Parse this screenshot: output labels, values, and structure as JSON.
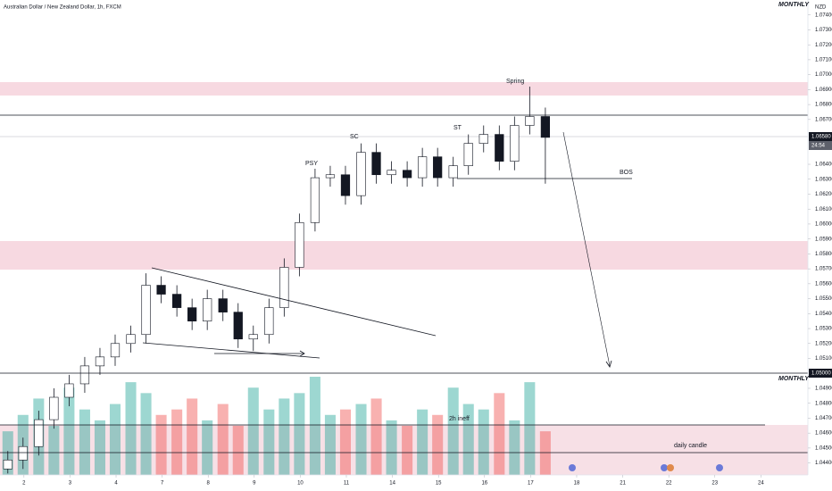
{
  "chart_data": {
    "type": "candlestick",
    "title": "Australian Dollar / New Zealand Dollar, 1h, FXCM",
    "currency": "NZD",
    "timeframe_labels": [
      "MONTHLY",
      "MONTHLY"
    ],
    "price_tags": [
      "1.06580",
      "24:54",
      "1.05000"
    ],
    "annotations": [
      "PSY",
      "SC",
      "ST",
      "Spring",
      "BOS",
      "2h ineff",
      "daily candle"
    ],
    "x": [
      0.65,
      0.98,
      1.32,
      1.65,
      1.98,
      2.32,
      2.65,
      2.98,
      3.32,
      3.65,
      3.98,
      4.32,
      4.65,
      4.98,
      5.32,
      5.65,
      5.98,
      6.32,
      6.65,
      6.98,
      7.32,
      7.65,
      7.98,
      8.32,
      8.65,
      8.98,
      9.32,
      9.65,
      9.98,
      10.32,
      10.65,
      10.98,
      11.32,
      11.65,
      11.98,
      12.32
    ],
    "open": [
      1.0436,
      1.0442,
      1.0451,
      1.0469,
      1.0484,
      1.0493,
      1.0505,
      1.0511,
      1.052,
      1.0526,
      1.0559,
      1.0553,
      1.0544,
      1.0535,
      1.055,
      1.0541,
      1.0523,
      1.0526,
      1.0544,
      1.0571,
      1.0601,
      1.0631,
      1.0633,
      1.0619,
      1.0648,
      1.0633,
      1.0636,
      1.0631,
      1.0645,
      1.0631,
      1.0639,
      1.0654,
      1.066,
      1.0642,
      1.0666,
      1.0672
    ],
    "high": [
      1.0448,
      1.0457,
      1.0475,
      1.049,
      1.0499,
      1.0511,
      1.0517,
      1.0526,
      1.0532,
      1.0567,
      1.0565,
      1.0559,
      1.055,
      1.0556,
      1.0556,
      1.0547,
      1.0532,
      1.055,
      1.0577,
      1.0607,
      1.0637,
      1.0639,
      1.0639,
      1.0654,
      1.0654,
      1.0642,
      1.0642,
      1.0651,
      1.0651,
      1.0645,
      1.066,
      1.0666,
      1.0666,
      1.0672,
      1.0692,
      1.0678
    ],
    "low": [
      1.0433,
      1.0436,
      1.0445,
      1.0463,
      1.0478,
      1.0487,
      1.0499,
      1.0505,
      1.0514,
      1.052,
      1.0547,
      1.0538,
      1.0529,
      1.0529,
      1.0535,
      1.0517,
      1.0515,
      1.052,
      1.0538,
      1.0565,
      1.0595,
      1.0625,
      1.0613,
      1.0613,
      1.0627,
      1.0627,
      1.0625,
      1.0625,
      1.0625,
      1.0625,
      1.0633,
      1.0648,
      1.0636,
      1.0636,
      1.066,
      1.0627
    ],
    "close": [
      1.0442,
      1.0451,
      1.0469,
      1.0484,
      1.0493,
      1.0505,
      1.0511,
      1.052,
      1.0526,
      1.0559,
      1.0553,
      1.0544,
      1.0535,
      1.055,
      1.0541,
      1.0523,
      1.0526,
      1.0544,
      1.0571,
      1.0601,
      1.0631,
      1.0633,
      1.0619,
      1.0648,
      1.0633,
      1.0636,
      1.0631,
      1.0645,
      1.0631,
      1.0639,
      1.0654,
      1.066,
      1.0642,
      1.0666,
      1.0672,
      1.0658
    ],
    "volume": [
      40,
      55,
      70,
      45,
      80,
      60,
      50,
      65,
      85,
      75,
      55,
      60,
      70,
      50,
      65,
      45,
      80,
      60,
      70,
      75,
      90,
      55,
      60,
      65,
      70,
      50,
      45,
      60,
      55,
      80,
      65,
      60,
      75,
      50,
      85,
      40
    ],
    "up_color": "#26a69a",
    "down_color": "#ef5350",
    "xlim": [
      0.48,
      18.02
    ],
    "xticks": [
      {
        "value": 1,
        "label": "2"
      },
      {
        "value": 2,
        "label": "3"
      },
      {
        "value": 3,
        "label": "4"
      },
      {
        "value": 4,
        "label": "7"
      },
      {
        "value": 5,
        "label": "8"
      },
      {
        "value": 6,
        "label": "9"
      },
      {
        "value": 7,
        "label": "10"
      },
      {
        "value": 8,
        "label": "11"
      },
      {
        "value": 9,
        "label": "14"
      },
      {
        "value": 10,
        "label": "15"
      },
      {
        "value": 11,
        "label": "16"
      },
      {
        "value": 12,
        "label": "17"
      },
      {
        "value": 13,
        "label": "18"
      },
      {
        "value": 14,
        "label": "21"
      },
      {
        "value": 15,
        "label": "22"
      },
      {
        "value": 16,
        "label": "23"
      },
      {
        "value": 17,
        "label": "24"
      }
    ],
    "ylim": [
      1.0432,
      1.075
    ],
    "yticks": [
      {
        "value": 1.044,
        "label": "1.04400"
      },
      {
        "value": 1.045,
        "label": "1.04500"
      },
      {
        "value": 1.046,
        "label": "1.04600"
      },
      {
        "value": 1.047,
        "label": "1.04700"
      },
      {
        "value": 1.048,
        "label": "1.04800"
      },
      {
        "value": 1.049,
        "label": "1.04900"
      },
      {
        "value": 1.051,
        "label": "1.05100"
      },
      {
        "value": 1.052,
        "label": "1.05200"
      },
      {
        "value": 1.053,
        "label": "1.05300"
      },
      {
        "value": 1.054,
        "label": "1.05400"
      },
      {
        "value": 1.055,
        "label": "1.05500"
      },
      {
        "value": 1.056,
        "label": "1.05600"
      },
      {
        "value": 1.057,
        "label": "1.05700"
      },
      {
        "value": 1.058,
        "label": "1.05800"
      },
      {
        "value": 1.059,
        "label": "1.05900"
      },
      {
        "value": 1.06,
        "label": "1.06000"
      },
      {
        "value": 1.061,
        "label": "1.06100"
      },
      {
        "value": 1.062,
        "label": "1.06200"
      },
      {
        "value": 1.063,
        "label": "1.06300"
      },
      {
        "value": 1.064,
        "label": "1.06400"
      },
      {
        "value": 1.067,
        "label": "1.06700"
      },
      {
        "value": 1.068,
        "label": "1.06800"
      },
      {
        "value": 1.069,
        "label": "1.06900"
      },
      {
        "value": 1.07,
        "label": "1.07000"
      },
      {
        "value": 1.071,
        "label": "1.07100"
      },
      {
        "value": 1.072,
        "label": "1.07200"
      },
      {
        "value": 1.073,
        "label": "1.07300"
      },
      {
        "value": 1.074,
        "label": "1.07400"
      }
    ],
    "grid": false
  }
}
